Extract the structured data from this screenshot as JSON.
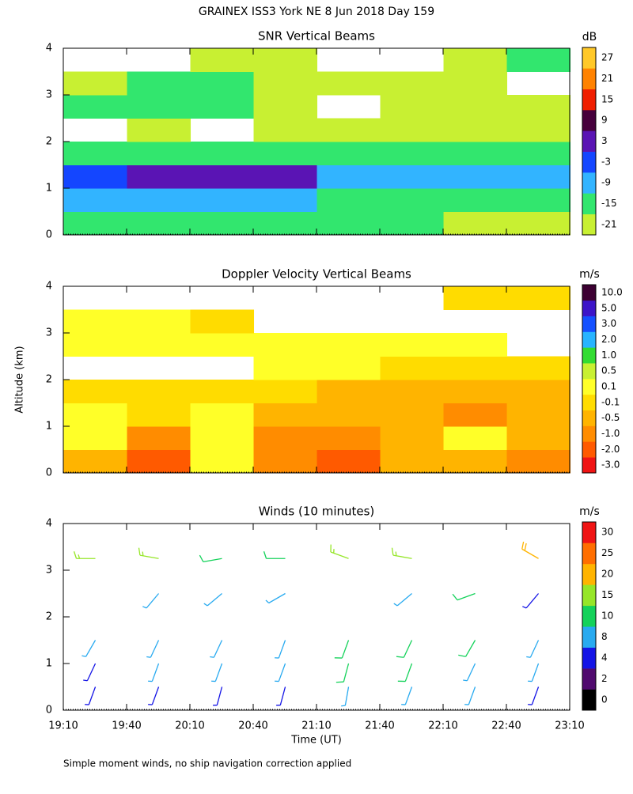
{
  "title": "GRAINEX ISS3 York NE   8 Jun 2018 Day 159",
  "footnote": "Simple moment winds, no ship navigation correction applied",
  "chart_data": [
    {
      "type": "heatmap",
      "title": "SNR Vertical Beams",
      "x": [
        19.42,
        19.92,
        20.42,
        20.92,
        21.42,
        21.92,
        22.42,
        22.92
      ],
      "y": [
        0.25,
        0.75,
        1.25,
        1.75,
        2.25,
        2.75,
        3.25,
        3.75
      ],
      "values": [
        [
          -15,
          -15,
          -15,
          -15,
          -15,
          -15,
          -21,
          -21
        ],
        [
          -9,
          -9,
          -9,
          -9,
          -15,
          -15,
          -15,
          -15
        ],
        [
          -3,
          3,
          3,
          3,
          -9,
          -9,
          -9,
          -9
        ],
        [
          -15,
          -15,
          -15,
          -15,
          -15,
          -15,
          -15,
          -15
        ],
        [
          null,
          -21,
          null,
          -21,
          -21,
          -21,
          -21,
          -21
        ],
        [
          -15,
          -15,
          -15,
          -21,
          null,
          -21,
          -21,
          -21
        ],
        [
          -21,
          -15,
          -15,
          -21,
          -21,
          -21,
          -21,
          null
        ],
        [
          null,
          null,
          -21,
          -21,
          null,
          null,
          -21,
          -15
        ]
      ],
      "xlim": [
        19.1667,
        23.1667
      ],
      "ylim": [
        0,
        4
      ],
      "yticks": [
        0,
        1,
        2,
        3,
        4
      ],
      "colorbar": {
        "unit": "dB",
        "ticks": [
          -21,
          -15,
          -9,
          -3,
          3,
          9,
          15,
          21,
          27
        ],
        "colors": [
          "#c8f032",
          "#32e66e",
          "#32b4ff",
          "#1446ff",
          "#5a14b4",
          "#46003c",
          "#f01e00",
          "#ff8200",
          "#ffc828"
        ]
      }
    },
    {
      "type": "heatmap",
      "title": "Doppler Velocity Vertical Beams",
      "ylabel": "Altitude (km)",
      "x": [
        19.42,
        19.92,
        20.42,
        20.92,
        21.42,
        21.92,
        22.42,
        22.92
      ],
      "y": [
        0.25,
        0.75,
        1.25,
        1.75,
        2.25,
        2.75,
        3.25,
        3.75
      ],
      "values": [
        [
          -0.5,
          -2.0,
          0.3,
          -1.0,
          -2.0,
          -0.5,
          -0.5,
          -1.0
        ],
        [
          0.3,
          -1.0,
          0.3,
          -1.0,
          -1.0,
          -0.5,
          0.3,
          -0.5
        ],
        [
          0.3,
          -0.3,
          0.3,
          -0.5,
          -0.5,
          -0.5,
          -1.0,
          -0.5
        ],
        [
          -0.3,
          -0.3,
          -0.3,
          -0.3,
          -0.5,
          -0.5,
          -0.5,
          -0.5
        ],
        [
          null,
          null,
          null,
          0.3,
          0.3,
          -0.3,
          -0.3,
          -0.3
        ],
        [
          0.3,
          0.3,
          0.3,
          0.3,
          0.3,
          0.3,
          0.1,
          null
        ],
        [
          0.3,
          0.3,
          -0.1,
          null,
          null,
          null,
          null,
          null
        ],
        [
          null,
          null,
          null,
          null,
          null,
          null,
          -0.3,
          -0.3
        ]
      ],
      "xlim": [
        19.1667,
        23.1667
      ],
      "ylim": [
        0,
        4
      ],
      "yticks": [
        0,
        1,
        2,
        3,
        4
      ],
      "colorbar": {
        "unit": "m/s",
        "ticks": [
          {
            "value": -3,
            "label": "-3.0"
          },
          {
            "value": -2,
            "label": "-2.0"
          },
          {
            "value": -1,
            "label": "-1.0"
          },
          -0.5,
          -0.1,
          0.1,
          0.5,
          {
            "value": 1,
            "label": "1.0"
          },
          {
            "value": 2,
            "label": "2.0"
          },
          {
            "value": 3,
            "label": "3.0"
          },
          {
            "value": 5,
            "label": "5.0"
          },
          {
            "value": 10,
            "label": "10.0"
          }
        ],
        "colors": [
          "#f01414",
          "#ff5a00",
          "#ff8c00",
          "#ffb400",
          "#ffdc00",
          "#ffff28",
          "#c8f032",
          "#32dc32",
          "#28b4ff",
          "#1450ff",
          "#3c14c8",
          "#3c0032"
        ]
      }
    },
    {
      "type": "barbs",
      "title": "Winds (10 minutes)",
      "xlabel": "Time (UT)",
      "x": [
        19.42,
        19.92,
        20.42,
        20.92,
        21.42,
        21.92,
        22.42,
        22.92
      ],
      "y": [
        0.5,
        1.0,
        1.5,
        2.5,
        3.25
      ],
      "values": [
        [
          6,
          6,
          7,
          7,
          8,
          9,
          8,
          7
        ],
        [
          7,
          8,
          8,
          9,
          10,
          10,
          9,
          8
        ],
        [
          8,
          8,
          9,
          9,
          10,
          10,
          10,
          9
        ],
        [
          null,
          9,
          8,
          8,
          null,
          8,
          12,
          6
        ],
        [
          16,
          19,
          14,
          13,
          18,
          16,
          null,
          22
        ]
      ],
      "directions": [
        [
          200,
          200,
          195,
          195,
          190,
          200,
          200,
          200
        ],
        [
          205,
          200,
          200,
          200,
          195,
          200,
          205,
          200
        ],
        [
          210,
          205,
          205,
          200,
          200,
          205,
          210,
          205
        ],
        [
          null,
          220,
          230,
          240,
          null,
          230,
          250,
          220
        ],
        [
          270,
          280,
          260,
          270,
          290,
          280,
          null,
          300
        ]
      ],
      "xlim": [
        19.1667,
        23.1667
      ],
      "ylim": [
        0,
        4
      ],
      "yticks": [
        0,
        1,
        2,
        3,
        4
      ],
      "xticks": [
        {
          "value": 19.1667,
          "label": "19:10"
        },
        {
          "value": 19.6667,
          "label": "19:40"
        },
        {
          "value": 20.1667,
          "label": "20:10"
        },
        {
          "value": 20.6667,
          "label": "20:40"
        },
        {
          "value": 21.1667,
          "label": "21:10"
        },
        {
          "value": 21.6667,
          "label": "21:40"
        },
        {
          "value": 22.1667,
          "label": "22:10"
        },
        {
          "value": 22.6667,
          "label": "22:40"
        },
        {
          "value": 23.1667,
          "label": "23:10"
        }
      ],
      "colorbar": {
        "unit": "m/s",
        "ticks": [
          0,
          2,
          4,
          8,
          10,
          15,
          20,
          25,
          30
        ],
        "colors": [
          "#000000",
          "#500a6e",
          "#1414e6",
          "#28aaf0",
          "#14d25a",
          "#96e628",
          "#ffb400",
          "#ff6e00",
          "#f01414"
        ]
      }
    }
  ]
}
